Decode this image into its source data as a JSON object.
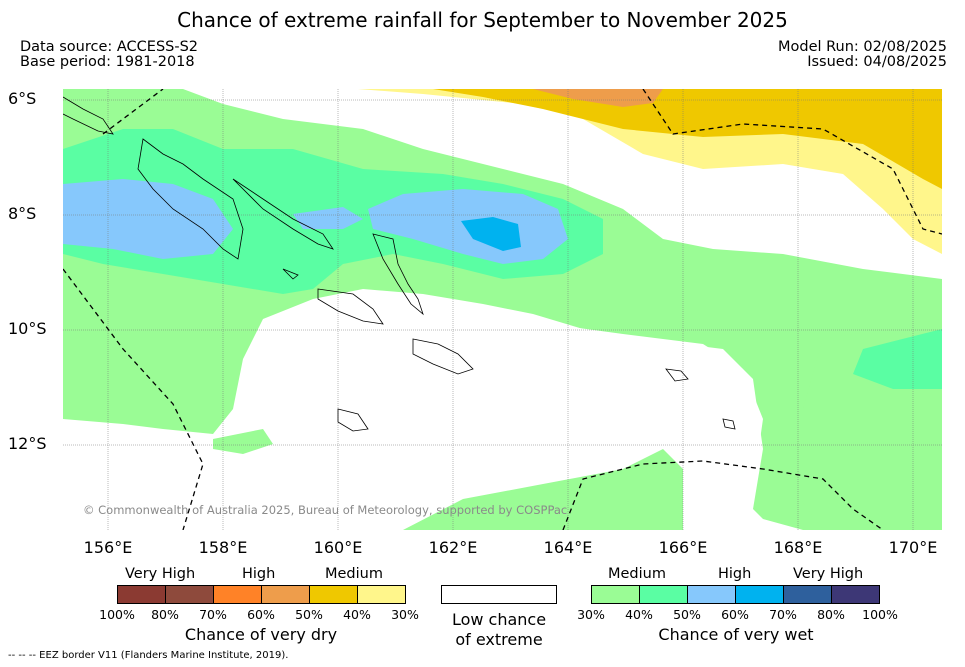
{
  "title": "Chance of extreme rainfall for September to November 2025",
  "data_source": "Data source: ACCESS-S2",
  "base_period": "Base period: 1981-2018",
  "model_run": "Model Run: 02/08/2025",
  "issued": "Issued: 04/08/2025",
  "lat_labels": [
    "6°S",
    "8°S",
    "10°S",
    "12°S"
  ],
  "lon_labels": [
    "156°E",
    "158°E",
    "160°E",
    "162°E",
    "164°E",
    "166°E",
    "168°E",
    "170°E"
  ],
  "copyright": "© Commonwealth of Australia 2025, Bureau of Meteorology, supported by COSPPac",
  "legend": {
    "dry": {
      "headers": [
        "Very High",
        "High",
        "Medium"
      ],
      "ticks": [
        "100%",
        "80%",
        "70%",
        "60%",
        "50%",
        "40%",
        "30%"
      ],
      "caption": "Chance of very dry",
      "colors": [
        "#8b3a32",
        "#8e4a3c",
        "#ff8227",
        "#ee9d4b",
        "#efc800",
        "#fff68b"
      ]
    },
    "low": {
      "caption_line1": "Low chance",
      "caption_line2": "of extreme"
    },
    "wet": {
      "headers": [
        "Medium",
        "High",
        "Very High"
      ],
      "ticks": [
        "30%",
        "40%",
        "50%",
        "60%",
        "70%",
        "80%",
        "100%"
      ],
      "caption": "Chance of very wet",
      "colors": [
        "#9afc95",
        "#5afea3",
        "#86c8fc",
        "#00b2ef",
        "#2e609d",
        "#3d3776"
      ]
    }
  },
  "footer": "-- -- -- EEZ border V11 (Flanders Marine Institute, 2019)."
}
